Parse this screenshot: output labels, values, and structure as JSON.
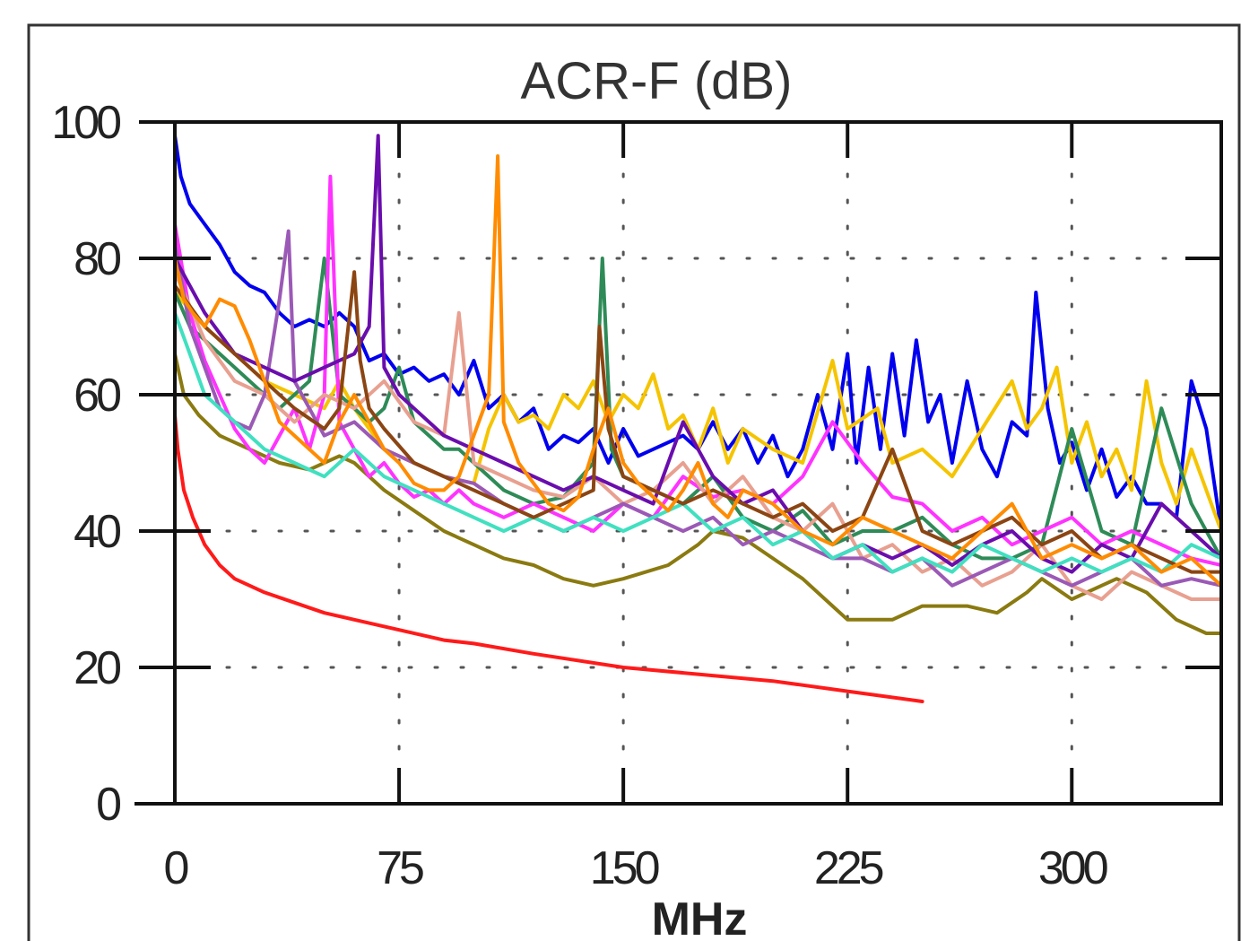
{
  "chart_data": {
    "type": "line",
    "title": "ACR-F (dB)",
    "xlabel": "MHz",
    "ylabel": "",
    "xlim": [
      0,
      350
    ],
    "ylim": [
      0,
      100
    ],
    "xticks": [
      0,
      75,
      150,
      225,
      300
    ],
    "yticks": [
      0,
      20,
      40,
      60,
      80,
      100
    ],
    "grid": true,
    "legend": "none",
    "series": [
      {
        "color": "#ff1a1a",
        "x": [
          0,
          1,
          3,
          6,
          10,
          15,
          20,
          30,
          40,
          50,
          60,
          75,
          90,
          100,
          120,
          150,
          175,
          200,
          225,
          250
        ],
        "y": [
          57,
          52,
          46,
          42,
          38,
          35,
          33,
          31,
          29.5,
          28,
          27,
          25.5,
          24,
          23.5,
          22,
          20,
          19,
          18,
          16.5,
          15
        ]
      },
      {
        "color": "#8a7a10",
        "x": [
          0,
          3,
          8,
          15,
          25,
          35,
          45,
          55,
          60,
          70,
          80,
          90,
          100,
          110,
          120,
          130,
          140,
          150,
          165,
          175,
          180,
          190,
          200,
          210,
          220,
          225,
          240,
          250,
          265,
          275,
          285,
          290,
          300,
          310,
          315,
          325,
          335,
          345,
          350
        ],
        "y": [
          66,
          60,
          57,
          54,
          52,
          50,
          49,
          51,
          50,
          46,
          43,
          40,
          38,
          36,
          35,
          33,
          32,
          33,
          35,
          38,
          40,
          39,
          36,
          33,
          29,
          27,
          27,
          29,
          29,
          28,
          31,
          33,
          30,
          32,
          33,
          31,
          27,
          25,
          25
        ]
      },
      {
        "color": "#0000ee",
        "x": [
          0,
          2,
          5,
          10,
          15,
          20,
          25,
          30,
          35,
          40,
          45,
          50,
          55,
          60,
          65,
          70,
          75,
          80,
          85,
          90,
          95,
          100,
          105,
          110,
          115,
          120,
          125,
          130,
          135,
          140,
          145,
          150,
          155,
          160,
          165,
          170,
          175,
          180,
          185,
          190,
          195,
          200,
          205,
          210,
          215,
          220,
          225,
          228,
          232,
          236,
          240,
          244,
          248,
          252,
          256,
          260,
          265,
          270,
          275,
          280,
          285,
          288,
          292,
          296,
          300,
          305,
          310,
          315,
          320,
          325,
          330,
          335,
          340,
          345,
          350
        ],
        "y": [
          98,
          92,
          88,
          85,
          82,
          78,
          76,
          75,
          72,
          70,
          71,
          70,
          72,
          70,
          65,
          66,
          63,
          64,
          62,
          63,
          60,
          65,
          58,
          60,
          56,
          58,
          52,
          54,
          53,
          55,
          50,
          55,
          51,
          52,
          53,
          54,
          52,
          56,
          52,
          55,
          50,
          54,
          48,
          52,
          60,
          52,
          66,
          50,
          64,
          52,
          66,
          54,
          68,
          56,
          60,
          50,
          62,
          52,
          48,
          56,
          54,
          75,
          58,
          50,
          53,
          46,
          52,
          45,
          48,
          44,
          44,
          42,
          62,
          55,
          40
        ]
      },
      {
        "color": "#f5c400",
        "x": [
          0,
          10,
          20,
          30,
          40,
          50,
          55,
          60,
          70,
          80,
          90,
          100,
          105,
          110,
          115,
          120,
          125,
          130,
          135,
          140,
          145,
          150,
          155,
          160,
          165,
          170,
          175,
          180,
          185,
          190,
          200,
          210,
          220,
          225,
          235,
          240,
          250,
          260,
          270,
          280,
          285,
          290,
          295,
          300,
          305,
          310,
          315,
          320,
          325,
          330,
          335,
          340,
          345,
          350
        ],
        "y": [
          75,
          70,
          66,
          62,
          60,
          58,
          62,
          58,
          52,
          50,
          48,
          47,
          55,
          60,
          56,
          57,
          55,
          60,
          58,
          62,
          56,
          60,
          58,
          63,
          55,
          57,
          52,
          58,
          50,
          55,
          52,
          50,
          65,
          55,
          58,
          50,
          52,
          48,
          55,
          62,
          55,
          58,
          64,
          50,
          56,
          48,
          52,
          46,
          62,
          50,
          44,
          52,
          46,
          40
        ]
      },
      {
        "color": "#2e8b57",
        "x": [
          0,
          5,
          10,
          15,
          20,
          25,
          30,
          35,
          40,
          45,
          50,
          55,
          60,
          65,
          70,
          75,
          80,
          85,
          90,
          95,
          100,
          110,
          120,
          130,
          140,
          143,
          146,
          150,
          160,
          170,
          180,
          190,
          200,
          210,
          220,
          230,
          240,
          250,
          260,
          270,
          280,
          290,
          300,
          310,
          320,
          330,
          340,
          350
        ],
        "y": [
          75,
          70,
          68,
          66,
          64,
          62,
          60,
          58,
          60,
          62,
          80,
          60,
          58,
          56,
          58,
          64,
          56,
          54,
          52,
          52,
          50,
          46,
          44,
          45,
          50,
          80,
          52,
          48,
          46,
          44,
          48,
          42,
          40,
          43,
          38,
          40,
          40,
          42,
          38,
          36,
          36,
          38,
          55,
          40,
          38,
          58,
          44,
          36
        ]
      },
      {
        "color": "#ff33ff",
        "x": [
          0,
          5,
          10,
          15,
          20,
          25,
          30,
          35,
          40,
          45,
          50,
          52,
          55,
          60,
          65,
          70,
          75,
          80,
          85,
          90,
          95,
          100,
          110,
          120,
          130,
          140,
          150,
          160,
          170,
          180,
          190,
          200,
          210,
          220,
          230,
          240,
          250,
          260,
          270,
          280,
          290,
          300,
          310,
          320,
          330,
          340,
          350
        ],
        "y": [
          85,
          72,
          65,
          60,
          55,
          52,
          50,
          54,
          58,
          52,
          60,
          92,
          56,
          52,
          48,
          50,
          47,
          45,
          46,
          44,
          46,
          44,
          42,
          44,
          42,
          40,
          44,
          42,
          48,
          45,
          46,
          44,
          48,
          56,
          50,
          45,
          44,
          40,
          42,
          38,
          40,
          42,
          38,
          40,
          38,
          36,
          35
        ]
      },
      {
        "color": "#e8a090",
        "x": [
          0,
          10,
          20,
          30,
          40,
          50,
          60,
          70,
          80,
          90,
          95,
          100,
          110,
          120,
          130,
          140,
          150,
          160,
          170,
          180,
          190,
          200,
          210,
          220,
          230,
          240,
          250,
          260,
          270,
          280,
          290,
          300,
          310,
          320,
          330,
          340,
          350
        ],
        "y": [
          78,
          68,
          62,
          60,
          56,
          60,
          58,
          62,
          56,
          54,
          72,
          50,
          48,
          46,
          45,
          48,
          44,
          46,
          50,
          44,
          48,
          42,
          40,
          44,
          36,
          38,
          34,
          36,
          32,
          34,
          38,
          32,
          30,
          34,
          32,
          30,
          30
        ]
      },
      {
        "color": "#9b59b6",
        "x": [
          0,
          5,
          10,
          15,
          20,
          25,
          30,
          35,
          38,
          40,
          45,
          50,
          60,
          70,
          80,
          90,
          100,
          110,
          120,
          130,
          140,
          150,
          160,
          170,
          180,
          190,
          200,
          210,
          220,
          230,
          240,
          250,
          260,
          270,
          280,
          290,
          300,
          310,
          320,
          330,
          340,
          350
        ],
        "y": [
          82,
          70,
          64,
          58,
          56,
          55,
          60,
          74,
          84,
          62,
          58,
          54,
          56,
          52,
          50,
          48,
          47,
          44,
          42,
          40,
          42,
          44,
          42,
          40,
          42,
          38,
          40,
          38,
          36,
          36,
          34,
          36,
          32,
          34,
          36,
          34,
          32,
          34,
          36,
          32,
          33,
          32
        ]
      },
      {
        "color": "#6a0dad",
        "x": [
          0,
          10,
          20,
          30,
          40,
          50,
          60,
          65,
          68,
          70,
          75,
          80,
          90,
          100,
          110,
          120,
          130,
          140,
          150,
          160,
          170,
          175,
          180,
          190,
          200,
          210,
          220,
          230,
          240,
          250,
          260,
          270,
          280,
          290,
          300,
          310,
          320,
          330,
          340,
          350
        ],
        "y": [
          80,
          72,
          66,
          64,
          62,
          64,
          66,
          70,
          98,
          64,
          60,
          58,
          54,
          52,
          50,
          48,
          46,
          48,
          46,
          44,
          56,
          52,
          48,
          44,
          46,
          40,
          36,
          38,
          36,
          38,
          35,
          38,
          40,
          36,
          34,
          38,
          36,
          44,
          40,
          36
        ]
      },
      {
        "color": "#40e0c0",
        "x": [
          0,
          5,
          10,
          15,
          20,
          25,
          30,
          40,
          50,
          60,
          70,
          80,
          90,
          100,
          110,
          120,
          130,
          140,
          150,
          160,
          170,
          180,
          190,
          200,
          210,
          220,
          230,
          240,
          250,
          260,
          270,
          280,
          290,
          300,
          310,
          320,
          330,
          340,
          350
        ],
        "y": [
          72,
          66,
          60,
          58,
          56,
          54,
          52,
          50,
          48,
          52,
          48,
          46,
          44,
          42,
          40,
          42,
          40,
          42,
          40,
          42,
          44,
          40,
          42,
          38,
          40,
          36,
          38,
          34,
          36,
          34,
          38,
          36,
          34,
          36,
          34,
          36,
          34,
          38,
          36
        ]
      },
      {
        "color": "#8b4513",
        "x": [
          0,
          10,
          20,
          30,
          40,
          50,
          55,
          60,
          62,
          65,
          70,
          80,
          90,
          100,
          110,
          120,
          130,
          140,
          142,
          145,
          150,
          160,
          170,
          180,
          190,
          200,
          210,
          220,
          230,
          240,
          250,
          260,
          270,
          280,
          290,
          300,
          310,
          320,
          330,
          340,
          350
        ],
        "y": [
          76,
          70,
          66,
          62,
          58,
          55,
          58,
          78,
          65,
          58,
          55,
          50,
          48,
          46,
          44,
          42,
          44,
          46,
          70,
          55,
          48,
          46,
          44,
          46,
          44,
          42,
          44,
          40,
          42,
          52,
          40,
          38,
          40,
          42,
          38,
          40,
          36,
          38,
          36,
          34,
          34
        ]
      },
      {
        "color": "#ff8c00",
        "x": [
          0,
          3,
          6,
          10,
          15,
          20,
          25,
          30,
          35,
          40,
          45,
          50,
          55,
          60,
          65,
          70,
          75,
          80,
          85,
          90,
          95,
          100,
          105,
          108,
          110,
          115,
          120,
          125,
          130,
          135,
          140,
          145,
          150,
          155,
          160,
          165,
          170,
          175,
          180,
          185,
          190,
          200,
          210,
          220,
          230,
          240,
          250,
          260,
          270,
          280,
          290,
          300,
          310,
          320,
          330,
          340,
          350
        ],
        "y": [
          80,
          74,
          72,
          70,
          74,
          73,
          68,
          62,
          56,
          54,
          52,
          50,
          56,
          60,
          56,
          52,
          50,
          47,
          46,
          46,
          48,
          54,
          60,
          95,
          56,
          50,
          47,
          44,
          43,
          45,
          52,
          58,
          50,
          47,
          45,
          43,
          46,
          50,
          44,
          42,
          46,
          44,
          40,
          38,
          42,
          40,
          38,
          36,
          40,
          44,
          36,
          38,
          36,
          38,
          34,
          36,
          32
        ]
      }
    ]
  }
}
